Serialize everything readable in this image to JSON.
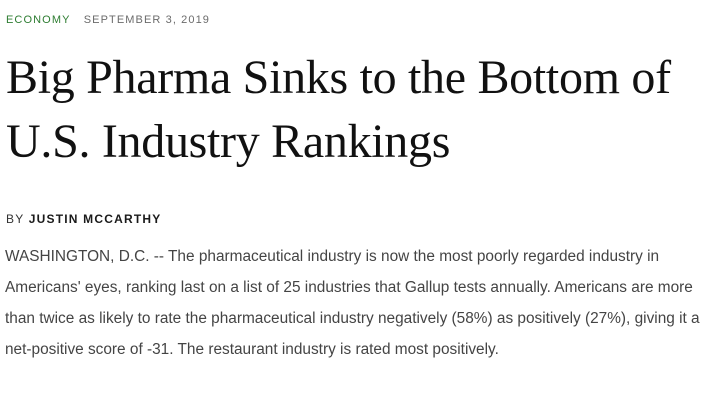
{
  "article": {
    "category": "ECONOMY",
    "date": "SEPTEMBER 3, 2019",
    "headline": "Big Pharma Sinks to the Bottom of U.S. Industry Rankings",
    "byline_prefix": "BY",
    "author": "JUSTIN MCCARTHY",
    "body": "WASHINGTON, D.C. -- The pharmaceutical industry is now the most poorly regarded industry in Americans' eyes, ranking last on a list of 25 industries that Gallup tests annually. Americans are more than twice as likely to rate the pharmaceutical industry negatively (58%) as positively (27%), giving it a net-positive score of -31. The restaurant industry is rated most positively."
  },
  "colors": {
    "category": "#2e7d32",
    "date": "#6b6b6b",
    "headline": "#111111",
    "body": "#444444"
  }
}
